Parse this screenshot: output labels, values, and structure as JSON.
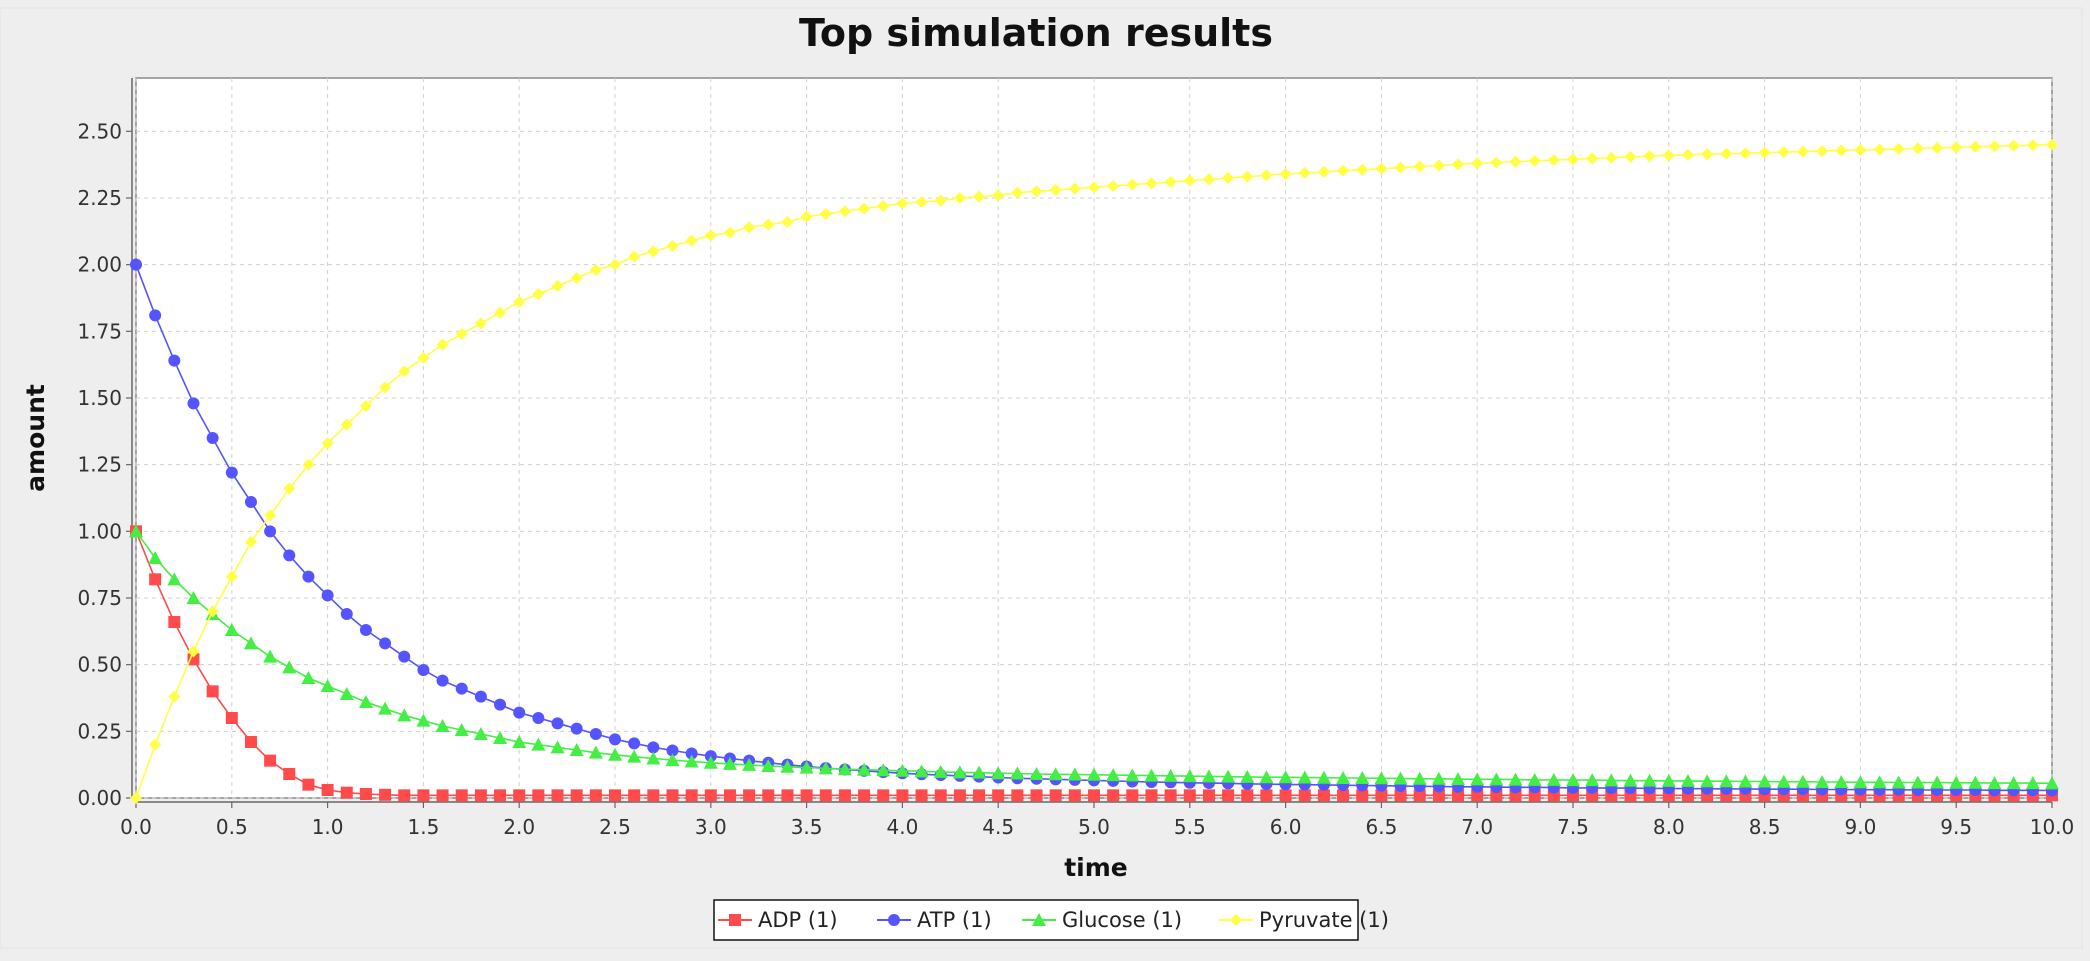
{
  "chart_data": {
    "type": "line",
    "title": "Top simulation results",
    "xlabel": "time",
    "ylabel": "amount",
    "xlim": [
      0,
      10
    ],
    "ylim": [
      0,
      2.7
    ],
    "x_ticks": [
      0,
      0.5,
      1,
      1.5,
      2,
      2.5,
      3,
      3.5,
      4,
      4.5,
      5,
      5.5,
      6,
      6.5,
      7,
      7.5,
      8,
      8.5,
      9,
      9.5,
      10
    ],
    "x_tick_labels": [
      "0.0",
      "0.5",
      "1.0",
      "1.5",
      "2.0",
      "2.5",
      "3.0",
      "3.5",
      "4.0",
      "4.5",
      "5.0",
      "5.5",
      "6.0",
      "6.5",
      "7.0",
      "7.5",
      "8.0",
      "8.5",
      "9.0",
      "9.5",
      "10.0"
    ],
    "y_ticks": [
      0,
      0.25,
      0.5,
      0.75,
      1,
      1.25,
      1.5,
      1.75,
      2,
      2.25,
      2.5
    ],
    "y_tick_labels": [
      "0.00",
      "0.25",
      "0.50",
      "0.75",
      "1.00",
      "1.25",
      "1.50",
      "1.75",
      "2.00",
      "2.25",
      "2.50"
    ],
    "grid": true,
    "legend_position": "bottom-center",
    "sample_interval": 0.1,
    "series": [
      {
        "name": "ADP (1)",
        "color": "#ff4b4b",
        "marker": "square",
        "x": [
          0,
          0.1,
          0.2,
          0.3,
          0.4,
          0.5,
          0.6,
          0.7,
          0.8,
          0.9,
          1.0,
          1.1,
          1.2,
          1.3,
          1.4,
          1.5,
          1.6,
          1.7,
          1.8,
          1.9,
          2.0,
          2.1,
          2.2,
          2.3,
          2.4,
          2.5,
          2.6,
          2.7,
          2.8,
          2.9,
          3.0,
          3.1,
          3.2,
          3.3,
          3.4,
          3.5,
          3.6,
          3.7,
          3.8,
          3.9,
          4.0,
          4.1,
          4.2,
          4.3,
          4.4,
          4.5,
          4.6,
          4.7,
          4.8,
          4.9,
          5.0,
          5.1,
          5.2,
          5.3,
          5.4,
          5.5,
          5.6,
          5.7,
          5.8,
          5.9,
          6.0,
          6.1,
          6.2,
          6.3,
          6.4,
          6.5,
          6.6,
          6.7,
          6.8,
          6.9,
          7.0,
          7.1,
          7.2,
          7.3,
          7.4,
          7.5,
          7.6,
          7.7,
          7.8,
          7.9,
          8.0,
          8.1,
          8.2,
          8.3,
          8.4,
          8.5,
          8.6,
          8.7,
          8.8,
          8.9,
          9.0,
          9.1,
          9.2,
          9.3,
          9.4,
          9.5,
          9.6,
          9.7,
          9.8,
          9.9,
          10.0
        ],
        "y": [
          1.0,
          0.82,
          0.66,
          0.52,
          0.4,
          0.3,
          0.21,
          0.14,
          0.09,
          0.05,
          0.03,
          0.02,
          0.015,
          0.012,
          0.01,
          0.01,
          0.01,
          0.01,
          0.01,
          0.01,
          0.01,
          0.01,
          0.01,
          0.01,
          0.01,
          0.01,
          0.01,
          0.01,
          0.01,
          0.01,
          0.01,
          0.01,
          0.01,
          0.01,
          0.01,
          0.01,
          0.01,
          0.01,
          0.01,
          0.01,
          0.01,
          0.01,
          0.01,
          0.01,
          0.01,
          0.01,
          0.01,
          0.01,
          0.01,
          0.01,
          0.01,
          0.01,
          0.01,
          0.01,
          0.01,
          0.01,
          0.01,
          0.01,
          0.01,
          0.01,
          0.01,
          0.01,
          0.01,
          0.01,
          0.01,
          0.01,
          0.01,
          0.01,
          0.01,
          0.01,
          0.01,
          0.01,
          0.01,
          0.01,
          0.01,
          0.01,
          0.01,
          0.01,
          0.01,
          0.01,
          0.01,
          0.01,
          0.01,
          0.01,
          0.01,
          0.01,
          0.01,
          0.01,
          0.01,
          0.01,
          0.01,
          0.01,
          0.01,
          0.01,
          0.01,
          0.01,
          0.01,
          0.01,
          0.01,
          0.01,
          0.01
        ]
      },
      {
        "name": "ATP (1)",
        "color": "#5555ff",
        "marker": "circle",
        "x": [
          0,
          0.1,
          0.2,
          0.3,
          0.4,
          0.5,
          0.6,
          0.7,
          0.8,
          0.9,
          1.0,
          1.1,
          1.2,
          1.3,
          1.4,
          1.5,
          1.6,
          1.7,
          1.8,
          1.9,
          2.0,
          2.1,
          2.2,
          2.3,
          2.4,
          2.5,
          2.6,
          2.7,
          2.8,
          2.9,
          3.0,
          3.1,
          3.2,
          3.3,
          3.4,
          3.5,
          3.6,
          3.7,
          3.8,
          3.9,
          4.0,
          4.1,
          4.2,
          4.3,
          4.4,
          4.5,
          4.6,
          4.7,
          4.8,
          4.9,
          5.0,
          5.1,
          5.2,
          5.3,
          5.4,
          5.5,
          5.6,
          5.7,
          5.8,
          5.9,
          6.0,
          6.1,
          6.2,
          6.3,
          6.4,
          6.5,
          6.6,
          6.7,
          6.8,
          6.9,
          7.0,
          7.1,
          7.2,
          7.3,
          7.4,
          7.5,
          7.6,
          7.7,
          7.8,
          7.9,
          8.0,
          8.1,
          8.2,
          8.3,
          8.4,
          8.5,
          8.6,
          8.7,
          8.8,
          8.9,
          9.0,
          9.1,
          9.2,
          9.3,
          9.4,
          9.5,
          9.6,
          9.7,
          9.8,
          9.9,
          10.0
        ],
        "y": [
          2.0,
          1.81,
          1.64,
          1.48,
          1.35,
          1.22,
          1.11,
          1.0,
          0.91,
          0.83,
          0.76,
          0.69,
          0.63,
          0.58,
          0.53,
          0.48,
          0.44,
          0.41,
          0.38,
          0.35,
          0.32,
          0.3,
          0.28,
          0.26,
          0.24,
          0.22,
          0.205,
          0.19,
          0.178,
          0.167,
          0.157,
          0.148,
          0.14,
          0.132,
          0.125,
          0.118,
          0.112,
          0.107,
          0.102,
          0.097,
          0.093,
          0.089,
          0.086,
          0.083,
          0.08,
          0.077,
          0.074,
          0.072,
          0.07,
          0.068,
          0.066,
          0.064,
          0.062,
          0.06,
          0.059,
          0.057,
          0.056,
          0.055,
          0.053,
          0.052,
          0.051,
          0.05,
          0.049,
          0.048,
          0.047,
          0.046,
          0.045,
          0.044,
          0.043,
          0.042,
          0.042,
          0.041,
          0.04,
          0.04,
          0.039,
          0.038,
          0.038,
          0.037,
          0.037,
          0.036,
          0.036,
          0.035,
          0.035,
          0.034,
          0.034,
          0.033,
          0.033,
          0.033,
          0.032,
          0.032,
          0.031,
          0.031,
          0.031,
          0.03,
          0.03,
          0.03,
          0.03,
          0.029,
          0.029,
          0.029,
          0.028
        ]
      },
      {
        "name": "Glucose (1)",
        "color": "#44ee44",
        "marker": "triangle",
        "x": [
          0,
          0.1,
          0.2,
          0.3,
          0.4,
          0.5,
          0.6,
          0.7,
          0.8,
          0.9,
          1.0,
          1.1,
          1.2,
          1.3,
          1.4,
          1.5,
          1.6,
          1.7,
          1.8,
          1.9,
          2.0,
          2.1,
          2.2,
          2.3,
          2.4,
          2.5,
          2.6,
          2.7,
          2.8,
          2.9,
          3.0,
          3.1,
          3.2,
          3.3,
          3.4,
          3.5,
          3.6,
          3.7,
          3.8,
          3.9,
          4.0,
          4.1,
          4.2,
          4.3,
          4.4,
          4.5,
          4.6,
          4.7,
          4.8,
          4.9,
          5.0,
          5.1,
          5.2,
          5.3,
          5.4,
          5.5,
          5.6,
          5.7,
          5.8,
          5.9,
          6.0,
          6.1,
          6.2,
          6.3,
          6.4,
          6.5,
          6.6,
          6.7,
          6.8,
          6.9,
          7.0,
          7.1,
          7.2,
          7.3,
          7.4,
          7.5,
          7.6,
          7.7,
          7.8,
          7.9,
          8.0,
          8.1,
          8.2,
          8.3,
          8.4,
          8.5,
          8.6,
          8.7,
          8.8,
          8.9,
          9.0,
          9.1,
          9.2,
          9.3,
          9.4,
          9.5,
          9.6,
          9.7,
          9.8,
          9.9,
          10.0
        ],
        "y": [
          1.0,
          0.9,
          0.82,
          0.75,
          0.69,
          0.63,
          0.58,
          0.53,
          0.49,
          0.45,
          0.42,
          0.39,
          0.36,
          0.335,
          0.31,
          0.29,
          0.27,
          0.255,
          0.24,
          0.225,
          0.21,
          0.2,
          0.19,
          0.18,
          0.17,
          0.162,
          0.155,
          0.148,
          0.142,
          0.137,
          0.132,
          0.128,
          0.124,
          0.12,
          0.117,
          0.114,
          0.111,
          0.108,
          0.106,
          0.104,
          0.102,
          0.1,
          0.098,
          0.096,
          0.095,
          0.093,
          0.092,
          0.09,
          0.089,
          0.088,
          0.087,
          0.086,
          0.085,
          0.084,
          0.083,
          0.082,
          0.081,
          0.08,
          0.079,
          0.078,
          0.078,
          0.077,
          0.076,
          0.075,
          0.075,
          0.074,
          0.073,
          0.072,
          0.072,
          0.071,
          0.07,
          0.07,
          0.069,
          0.068,
          0.068,
          0.067,
          0.067,
          0.066,
          0.065,
          0.065,
          0.064,
          0.064,
          0.063,
          0.063,
          0.062,
          0.062,
          0.061,
          0.061,
          0.06,
          0.06,
          0.059,
          0.059,
          0.058,
          0.058,
          0.058,
          0.057,
          0.057,
          0.056,
          0.056,
          0.056,
          0.055
        ]
      },
      {
        "name": "Pyruvate (1)",
        "color": "#ffff44",
        "marker": "diamond",
        "x": [
          0,
          0.1,
          0.2,
          0.3,
          0.4,
          0.5,
          0.6,
          0.7,
          0.8,
          0.9,
          1.0,
          1.1,
          1.2,
          1.3,
          1.4,
          1.5,
          1.6,
          1.7,
          1.8,
          1.9,
          2.0,
          2.1,
          2.2,
          2.3,
          2.4,
          2.5,
          2.6,
          2.7,
          2.8,
          2.9,
          3.0,
          3.1,
          3.2,
          3.3,
          3.4,
          3.5,
          3.6,
          3.7,
          3.8,
          3.9,
          4.0,
          4.1,
          4.2,
          4.3,
          4.4,
          4.5,
          4.6,
          4.7,
          4.8,
          4.9,
          5.0,
          5.1,
          5.2,
          5.3,
          5.4,
          5.5,
          5.6,
          5.7,
          5.8,
          5.9,
          6.0,
          6.1,
          6.2,
          6.3,
          6.4,
          6.5,
          6.6,
          6.7,
          6.8,
          6.9,
          7.0,
          7.1,
          7.2,
          7.3,
          7.4,
          7.5,
          7.6,
          7.7,
          7.8,
          7.9,
          8.0,
          8.1,
          8.2,
          8.3,
          8.4,
          8.5,
          8.6,
          8.7,
          8.8,
          8.9,
          9.0,
          9.1,
          9.2,
          9.3,
          9.4,
          9.5,
          9.6,
          9.7,
          9.8,
          9.9,
          10.0
        ],
        "y": [
          0.0,
          0.2,
          0.38,
          0.55,
          0.7,
          0.83,
          0.96,
          1.06,
          1.16,
          1.25,
          1.33,
          1.4,
          1.47,
          1.54,
          1.6,
          1.65,
          1.7,
          1.74,
          1.78,
          1.82,
          1.86,
          1.89,
          1.92,
          1.95,
          1.98,
          2.0,
          2.03,
          2.05,
          2.07,
          2.09,
          2.11,
          2.12,
          2.14,
          2.15,
          2.16,
          2.18,
          2.19,
          2.2,
          2.21,
          2.22,
          2.23,
          2.235,
          2.24,
          2.25,
          2.255,
          2.26,
          2.27,
          2.275,
          2.28,
          2.285,
          2.29,
          2.295,
          2.3,
          2.305,
          2.31,
          2.315,
          2.32,
          2.325,
          2.33,
          2.335,
          2.34,
          2.344,
          2.348,
          2.352,
          2.356,
          2.36,
          2.364,
          2.368,
          2.372,
          2.376,
          2.38,
          2.383,
          2.386,
          2.389,
          2.392,
          2.395,
          2.398,
          2.401,
          2.404,
          2.407,
          2.41,
          2.412,
          2.414,
          2.416,
          2.418,
          2.42,
          2.422,
          2.424,
          2.426,
          2.428,
          2.43,
          2.432,
          2.434,
          2.436,
          2.438,
          2.44,
          2.442,
          2.444,
          2.446,
          2.448,
          2.45
        ]
      }
    ]
  }
}
